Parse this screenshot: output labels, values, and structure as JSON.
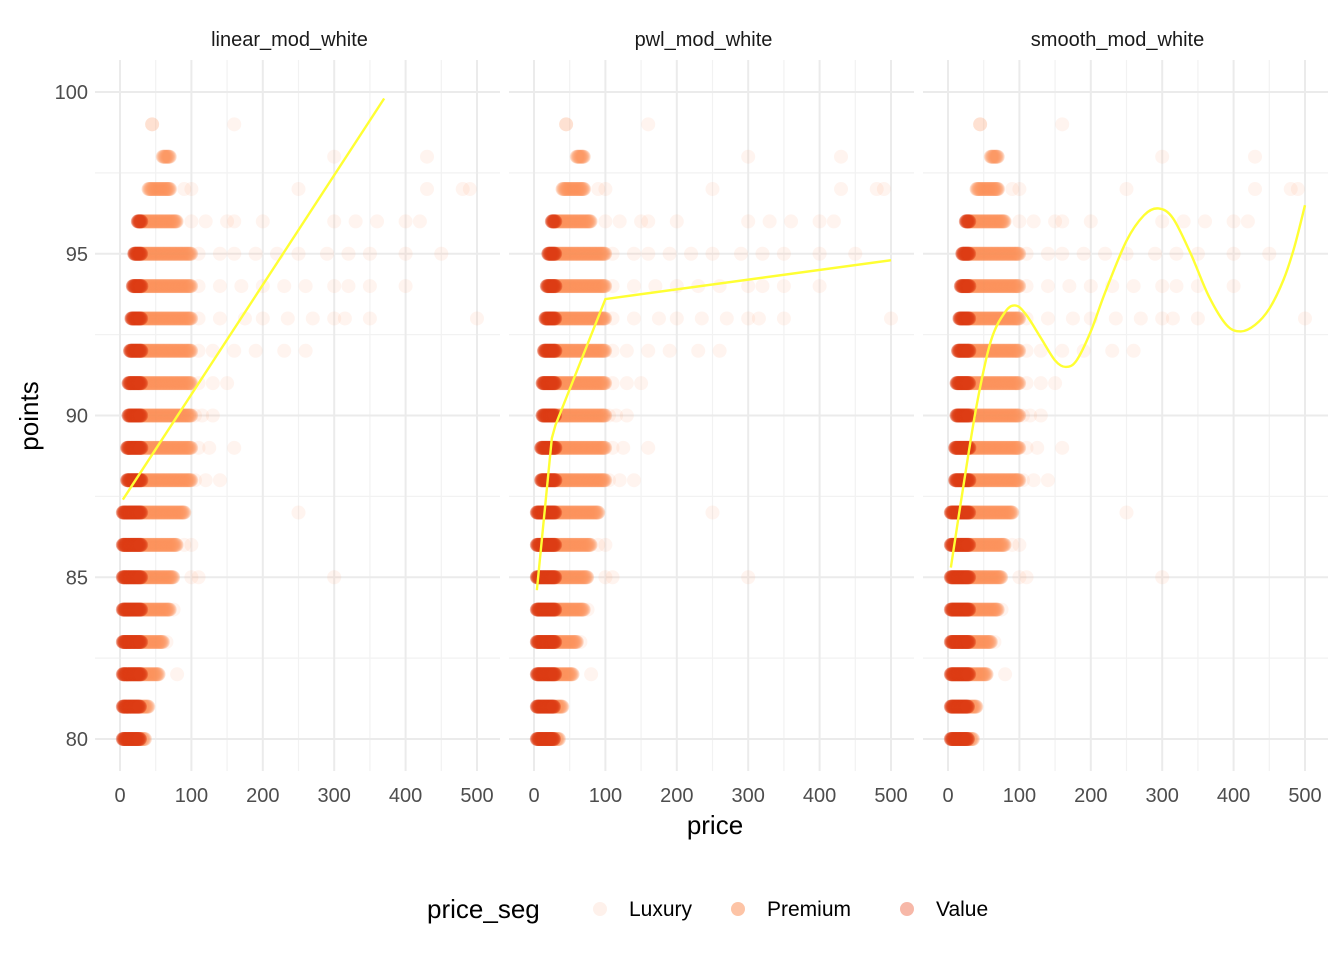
{
  "chart_data": {
    "type": "scatter",
    "facets": [
      "linear_mod_white",
      "pwl_mod_white",
      "smooth_mod_white"
    ],
    "xlabel": "price",
    "ylabel": "points",
    "xlim": [
      0,
      500
    ],
    "ylim": [
      80,
      100
    ],
    "x_ticks": [
      0,
      100,
      200,
      300,
      400,
      500
    ],
    "y_ticks": [
      80,
      85,
      90,
      95,
      100
    ],
    "grid": true,
    "legend": {
      "title": "price_seg",
      "position": "bottom",
      "entries": [
        {
          "name": "Luxury",
          "color": "#fef1eb"
        },
        {
          "name": "Premium",
          "color": "#fdc4a6"
        },
        {
          "name": "Value",
          "color": "#f7b8a8"
        }
      ]
    },
    "series_colors": {
      "Value": "#de3b14",
      "Premium": "#fd935e",
      "Luxury": "#fde3d7",
      "fit": "#ffff33"
    },
    "points_by_score": [
      {
        "points": 80,
        "value_x": [
          4,
          28
        ],
        "premium_x": [
          30,
          35
        ],
        "luxury_x": []
      },
      {
        "points": 81,
        "value_x": [
          4,
          28
        ],
        "premium_x": [
          30,
          40
        ],
        "luxury_x": []
      },
      {
        "points": 82,
        "value_x": [
          4,
          30
        ],
        "premium_x": [
          30,
          55
        ],
        "luxury_x": [
          80
        ]
      },
      {
        "points": 83,
        "value_x": [
          4,
          30
        ],
        "premium_x": [
          30,
          60
        ],
        "luxury_x": [
          65
        ]
      },
      {
        "points": 84,
        "value_x": [
          4,
          30
        ],
        "premium_x": [
          30,
          70
        ],
        "luxury_x": [
          75
        ]
      },
      {
        "points": 85,
        "value_x": [
          4,
          30
        ],
        "premium_x": [
          30,
          75
        ],
        "luxury_x": [
          100,
          110,
          300
        ]
      },
      {
        "points": 86,
        "value_x": [
          4,
          30
        ],
        "premium_x": [
          30,
          80
        ],
        "luxury_x": [
          90,
          100
        ]
      },
      {
        "points": 87,
        "value_x": [
          4,
          30
        ],
        "premium_x": [
          30,
          90
        ],
        "luxury_x": [
          250
        ]
      },
      {
        "points": 88,
        "value_x": [
          10,
          30
        ],
        "premium_x": [
          30,
          100
        ],
        "luxury_x": [
          105,
          120,
          140
        ]
      },
      {
        "points": 89,
        "value_x": [
          10,
          30
        ],
        "premium_x": [
          30,
          100
        ],
        "luxury_x": [
          110,
          125,
          160
        ]
      },
      {
        "points": 90,
        "value_x": [
          12,
          30
        ],
        "premium_x": [
          30,
          100
        ],
        "luxury_x": [
          105,
          115,
          130
        ]
      },
      {
        "points": 91,
        "value_x": [
          12,
          30
        ],
        "premium_x": [
          30,
          100
        ],
        "luxury_x": [
          110,
          130,
          150
        ]
      },
      {
        "points": 92,
        "value_x": [
          14,
          30
        ],
        "premium_x": [
          30,
          100
        ],
        "luxury_x": [
          110,
          130,
          160,
          190,
          230,
          260
        ]
      },
      {
        "points": 93,
        "value_x": [
          16,
          30
        ],
        "premium_x": [
          30,
          100
        ],
        "luxury_x": [
          110,
          140,
          175,
          200,
          235,
          270,
          300,
          315,
          350,
          500
        ]
      },
      {
        "points": 94,
        "value_x": [
          18,
          30
        ],
        "premium_x": [
          30,
          100
        ],
        "luxury_x": [
          110,
          140,
          170,
          200,
          230,
          260,
          300,
          320,
          350,
          400
        ]
      },
      {
        "points": 95,
        "value_x": [
          20,
          30
        ],
        "premium_x": [
          30,
          100
        ],
        "luxury_x": [
          110,
          140,
          160,
          190,
          220,
          250,
          290,
          320,
          350,
          400,
          450
        ]
      },
      {
        "points": 96,
        "value_x": [
          25,
          30
        ],
        "premium_x": [
          30,
          80
        ],
        "luxury_x": [
          100,
          120,
          150,
          160,
          200,
          300,
          330,
          360,
          400,
          420
        ]
      },
      {
        "points": 97,
        "value_x": [],
        "premium_x": [
          40,
          70
        ],
        "luxury_x": [
          90,
          100,
          250,
          430,
          480,
          490
        ]
      },
      {
        "points": 98,
        "value_x": [],
        "premium_x": [
          60,
          70
        ],
        "luxury_x": [
          300,
          430
        ]
      },
      {
        "points": 99,
        "value_x": [],
        "premium_x": [
          45,
          45
        ],
        "luxury_x": [
          160
        ]
      }
    ],
    "fits": [
      {
        "facet": "linear_mod_white",
        "x": [
          4,
          370
        ],
        "y": [
          87.4,
          99.8
        ]
      },
      {
        "facet": "pwl_mod_white",
        "x": [
          4,
          25,
          30,
          100,
          500
        ],
        "y": [
          84.6,
          89.3,
          89.7,
          93.6,
          94.8
        ]
      },
      {
        "facet": "smooth_mod_white",
        "x": [
          4,
          20,
          40,
          60,
          80,
          95,
          110,
          130,
          150,
          165,
          180,
          200,
          220,
          250,
          275,
          295,
          315,
          340,
          365,
          390,
          410,
          430,
          450,
          470,
          485,
          500
        ],
        "y": [
          85.3,
          87.6,
          90.3,
          92.3,
          93.2,
          93.4,
          93.1,
          92.4,
          91.7,
          91.5,
          91.7,
          92.6,
          93.8,
          95.4,
          96.2,
          96.4,
          96.1,
          95.0,
          93.7,
          92.8,
          92.6,
          92.8,
          93.3,
          94.2,
          95.2,
          96.5
        ]
      }
    ]
  }
}
